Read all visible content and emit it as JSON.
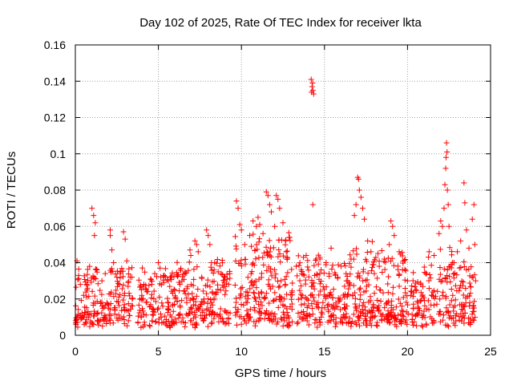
{
  "chart_data": {
    "type": "scatter",
    "title": "Day 102 of 2025, Rate Of TEC Index for receiver lkta",
    "xlabel": "GPS time / hours",
    "ylabel": "ROTI / TECUs",
    "xlim": [
      0,
      25
    ],
    "ylim": [
      0,
      0.16
    ],
    "xticks": [
      0,
      5,
      10,
      15,
      20,
      25
    ],
    "xtick_labels": [
      "0",
      "5",
      "10",
      "15",
      "20",
      "25"
    ],
    "yticks": [
      0,
      0.02,
      0.04,
      0.06,
      0.08,
      0.1,
      0.12,
      0.14,
      0.16
    ],
    "ytick_labels": [
      "0",
      "0.02",
      "0.04",
      "0.06",
      "0.08",
      "0.1",
      "0.12",
      "0.14",
      "0.16"
    ],
    "grid": true,
    "marker": "+",
    "marker_color": "#ff0000",
    "series": [
      {
        "name": "ROTI",
        "points": [
          [
            0.1,
            0.041
          ],
          [
            0.2,
            0.033
          ],
          [
            0.3,
            0.028
          ],
          [
            0.5,
            0.022
          ],
          [
            0.7,
            0.025
          ],
          [
            1.0,
            0.07
          ],
          [
            1.1,
            0.066
          ],
          [
            1.2,
            0.062
          ],
          [
            1.15,
            0.055
          ],
          [
            1.3,
            0.036
          ],
          [
            1.6,
            0.03
          ],
          [
            1.8,
            0.034
          ],
          [
            2.1,
            0.058
          ],
          [
            2.1,
            0.055
          ],
          [
            2.2,
            0.047
          ],
          [
            2.3,
            0.04
          ],
          [
            2.5,
            0.032
          ],
          [
            2.7,
            0.034
          ],
          [
            2.9,
            0.057
          ],
          [
            3.0,
            0.053
          ],
          [
            3.1,
            0.041
          ],
          [
            3.3,
            0.032
          ],
          [
            4.0,
            0.022
          ],
          [
            4.3,
            0.024
          ],
          [
            4.6,
            0.028
          ],
          [
            5.0,
            0.04
          ],
          [
            5.1,
            0.037
          ],
          [
            5.3,
            0.032
          ],
          [
            5.6,
            0.03
          ],
          [
            6.3,
            0.028
          ],
          [
            6.6,
            0.035
          ],
          [
            6.9,
            0.047
          ],
          [
            6.95,
            0.044
          ],
          [
            7.2,
            0.052
          ],
          [
            7.3,
            0.05
          ],
          [
            7.4,
            0.046
          ],
          [
            7.9,
            0.058
          ],
          [
            8.0,
            0.055
          ],
          [
            8.1,
            0.05
          ],
          [
            8.2,
            0.04
          ],
          [
            8.6,
            0.035
          ],
          [
            9.0,
            0.032
          ],
          [
            9.3,
            0.034
          ],
          [
            9.7,
            0.074
          ],
          [
            9.8,
            0.07
          ],
          [
            9.9,
            0.061
          ],
          [
            10.0,
            0.058
          ],
          [
            10.2,
            0.05
          ],
          [
            10.5,
            0.055
          ],
          [
            10.7,
            0.063
          ],
          [
            10.9,
            0.06
          ],
          [
            11.0,
            0.065
          ],
          [
            11.1,
            0.061
          ],
          [
            11.3,
            0.056
          ],
          [
            11.5,
            0.079
          ],
          [
            11.6,
            0.077
          ],
          [
            11.7,
            0.072
          ],
          [
            11.8,
            0.068
          ],
          [
            12.0,
            0.06
          ],
          [
            12.1,
            0.077
          ],
          [
            12.2,
            0.075
          ],
          [
            12.3,
            0.07
          ],
          [
            12.5,
            0.062
          ],
          [
            12.7,
            0.046
          ],
          [
            12.9,
            0.054
          ],
          [
            13.3,
            0.038
          ],
          [
            13.6,
            0.036
          ],
          [
            13.9,
            0.044
          ],
          [
            14.2,
            0.141
          ],
          [
            14.25,
            0.137
          ],
          [
            14.3,
            0.135
          ],
          [
            14.22,
            0.134
          ],
          [
            14.35,
            0.133
          ],
          [
            14.28,
            0.139
          ],
          [
            14.3,
            0.072
          ],
          [
            14.5,
            0.042
          ],
          [
            14.8,
            0.036
          ],
          [
            15.1,
            0.04
          ],
          [
            15.4,
            0.048
          ],
          [
            16.0,
            0.038
          ],
          [
            16.3,
            0.034
          ],
          [
            16.6,
            0.042
          ],
          [
            16.8,
            0.066
          ],
          [
            16.9,
            0.072
          ],
          [
            17.0,
            0.087
          ],
          [
            17.05,
            0.086
          ],
          [
            17.1,
            0.08
          ],
          [
            17.2,
            0.076
          ],
          [
            17.3,
            0.07
          ],
          [
            17.4,
            0.064
          ],
          [
            17.6,
            0.052
          ],
          [
            17.8,
            0.046
          ],
          [
            18.0,
            0.034
          ],
          [
            18.3,
            0.038
          ],
          [
            18.6,
            0.042
          ],
          [
            18.9,
            0.05
          ],
          [
            19.0,
            0.063
          ],
          [
            19.1,
            0.06
          ],
          [
            19.2,
            0.055
          ],
          [
            19.5,
            0.046
          ],
          [
            19.7,
            0.036
          ],
          [
            20.0,
            0.03
          ],
          [
            20.2,
            0.022
          ],
          [
            20.5,
            0.025
          ],
          [
            20.8,
            0.028
          ],
          [
            21.1,
            0.034
          ],
          [
            21.3,
            0.046
          ],
          [
            21.6,
            0.044
          ],
          [
            21.9,
            0.056
          ],
          [
            22.0,
            0.063
          ],
          [
            22.1,
            0.06
          ],
          [
            22.2,
            0.07
          ],
          [
            22.25,
            0.083
          ],
          [
            22.3,
            0.092
          ],
          [
            22.32,
            0.098
          ],
          [
            22.35,
            0.106
          ],
          [
            22.38,
            0.101
          ],
          [
            22.4,
            0.08
          ],
          [
            22.45,
            0.072
          ],
          [
            22.5,
            0.06
          ],
          [
            22.8,
            0.04
          ],
          [
            23.0,
            0.046
          ],
          [
            23.2,
            0.052
          ],
          [
            23.4,
            0.084
          ],
          [
            23.45,
            0.073
          ],
          [
            23.55,
            0.058
          ],
          [
            23.7,
            0.048
          ],
          [
            23.9,
            0.064
          ],
          [
            24.0,
            0.072
          ],
          [
            24.05,
            0.05
          ],
          [
            24.1,
            0.03
          ]
        ]
      }
    ]
  }
}
